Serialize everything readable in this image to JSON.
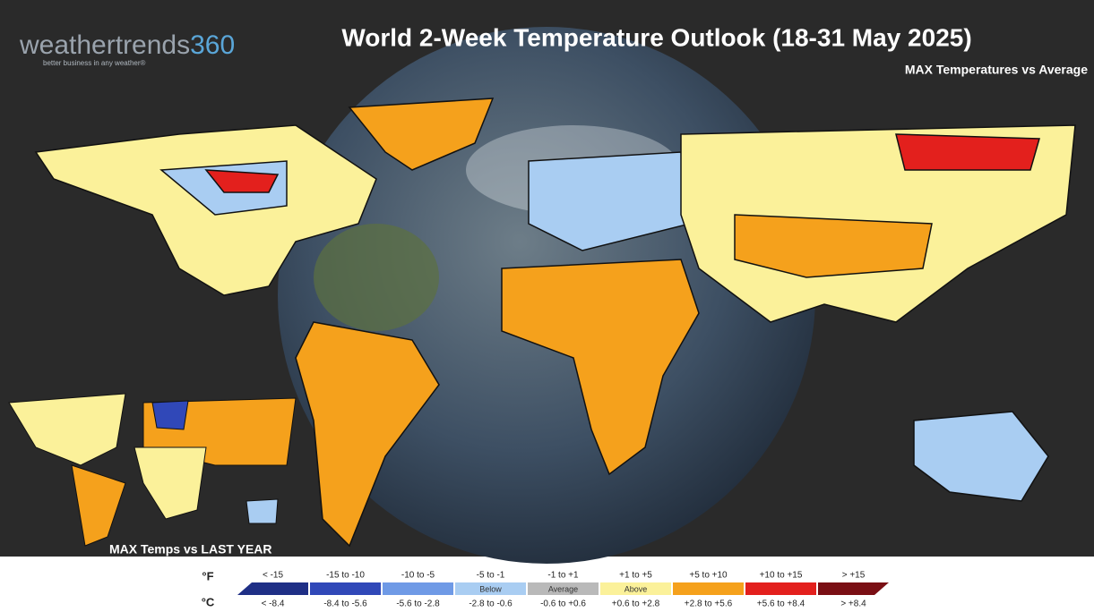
{
  "logo": {
    "word": "weathertrends",
    "number": "360",
    "tagline": "better business in any weather®"
  },
  "title": "World 2-Week Temperature Outlook (18-31 May 2025)",
  "subtitle": "MAX Temperatures vs Average",
  "inset_label": "MAX Temps vs LAST YEAR",
  "legend": {
    "f_unit": "°F",
    "c_unit": "°C",
    "bins": [
      {
        "f": "< -15",
        "c": "< -8.4",
        "color": "#1f2f86"
      },
      {
        "f": "-15 to -10",
        "c": "-8.4 to -5.6",
        "color": "#3048b8"
      },
      {
        "f": "-10 to -5",
        "c": "-5.6 to -2.8",
        "color": "#6f9ae6"
      },
      {
        "f": "-5 to -1",
        "c": "-2.8 to -0.6",
        "label": "Below",
        "color": "#a9cdf2"
      },
      {
        "f": "-1 to +1",
        "c": "-0.6 to +0.6",
        "label": "Average",
        "color": "#b9b9b9"
      },
      {
        "f": "+1 to +5",
        "c": "+0.6 to +2.8",
        "label": "Above",
        "color": "#fbf19a"
      },
      {
        "f": "+5 to +10",
        "c": "+2.8 to +5.6",
        "color": "#f5a11c"
      },
      {
        "f": "+10 to +15",
        "c": "+5.6 to +8.4",
        "color": "#e3201d"
      },
      {
        "f": "> +15",
        "c": "> +8.4",
        "color": "#7a0f14"
      }
    ]
  }
}
